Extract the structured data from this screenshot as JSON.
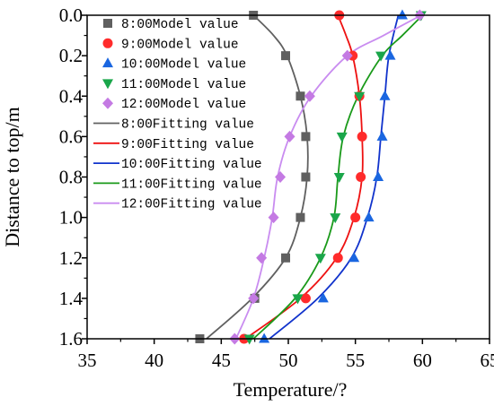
{
  "chart_data": {
    "type": "line",
    "title": "",
    "xlabel": "Temperature/?",
    "ylabel": "Distance to top/m",
    "xlim": [
      35,
      65
    ],
    "ylim": [
      0.0,
      1.6
    ],
    "y_inverted": true,
    "x_axis_position": "bottom",
    "xticks": [
      "35",
      "40",
      "45",
      "50",
      "55",
      "60",
      "65"
    ],
    "yticks": [
      "0.0",
      "0.2",
      "0.4",
      "0.6",
      "0.8",
      "1.0",
      "1.2",
      "1.4",
      "1.6"
    ],
    "grid": false,
    "legend_position": "top-left-inside",
    "model_series": [
      {
        "name": "8:00Model value",
        "marker": "square",
        "color": "#606060",
        "points": [
          [
            47.4,
            0.0
          ],
          [
            49.8,
            0.2
          ],
          [
            50.9,
            0.4
          ],
          [
            51.3,
            0.6
          ],
          [
            51.3,
            0.8
          ],
          [
            50.9,
            1.0
          ],
          [
            49.8,
            1.2
          ],
          [
            47.5,
            1.4
          ],
          [
            43.4,
            1.6
          ]
        ]
      },
      {
        "name": "9:00Model value",
        "marker": "circle",
        "color": "#ff2b2b",
        "points": [
          [
            53.8,
            0.0
          ],
          [
            54.8,
            0.2
          ],
          [
            55.3,
            0.4
          ],
          [
            55.5,
            0.6
          ],
          [
            55.4,
            0.8
          ],
          [
            55.0,
            1.0
          ],
          [
            53.7,
            1.2
          ],
          [
            51.3,
            1.4
          ],
          [
            46.7,
            1.6
          ]
        ]
      },
      {
        "name": "10:00Model value",
        "marker": "triangle-up",
        "color": "#1a66e0",
        "points": [
          [
            58.5,
            0.0
          ],
          [
            57.6,
            0.2
          ],
          [
            57.2,
            0.4
          ],
          [
            57.0,
            0.6
          ],
          [
            56.7,
            0.8
          ],
          [
            56.0,
            1.0
          ],
          [
            54.9,
            1.2
          ],
          [
            52.6,
            1.4
          ],
          [
            48.2,
            1.6
          ]
        ]
      },
      {
        "name": "11:00Model value",
        "marker": "triangle-down",
        "color": "#1aa64a",
        "points": [
          [
            59.9,
            0.0
          ],
          [
            56.9,
            0.2
          ],
          [
            55.3,
            0.4
          ],
          [
            54.0,
            0.6
          ],
          [
            53.8,
            0.8
          ],
          [
            53.5,
            1.0
          ],
          [
            52.4,
            1.2
          ],
          [
            50.7,
            1.4
          ],
          [
            47.1,
            1.6
          ]
        ]
      },
      {
        "name": "12:00Model value",
        "marker": "diamond",
        "color": "#c47ae3",
        "points": [
          [
            59.8,
            0.0
          ],
          [
            54.4,
            0.2
          ],
          [
            51.6,
            0.4
          ],
          [
            50.1,
            0.6
          ],
          [
            49.4,
            0.8
          ],
          [
            48.9,
            1.0
          ],
          [
            48.0,
            1.2
          ],
          [
            47.4,
            1.4
          ],
          [
            46.0,
            1.6
          ]
        ]
      }
    ],
    "fit_series": [
      {
        "name": "8:00Fitting value",
        "color": "#606060",
        "points": [
          [
            47.4,
            0.0
          ],
          [
            48.9,
            0.1
          ],
          [
            49.9,
            0.2
          ],
          [
            50.9,
            0.4
          ],
          [
            51.4,
            0.6
          ],
          [
            51.4,
            0.8
          ],
          [
            50.9,
            1.0
          ],
          [
            49.8,
            1.2
          ],
          [
            47.3,
            1.4
          ],
          [
            43.9,
            1.6
          ]
        ]
      },
      {
        "name": "9:00Fitting value",
        "color": "#ee1111",
        "points": [
          [
            53.7,
            0.0
          ],
          [
            54.3,
            0.1
          ],
          [
            54.8,
            0.2
          ],
          [
            55.3,
            0.4
          ],
          [
            55.5,
            0.6
          ],
          [
            55.5,
            0.8
          ],
          [
            54.9,
            1.0
          ],
          [
            53.6,
            1.2
          ],
          [
            50.9,
            1.4
          ],
          [
            46.8,
            1.6
          ]
        ]
      },
      {
        "name": "10:00Fitting value",
        "color": "#1133cc",
        "points": [
          [
            58.2,
            0.0
          ],
          [
            57.5,
            0.2
          ],
          [
            57.2,
            0.4
          ],
          [
            56.9,
            0.6
          ],
          [
            56.6,
            0.8
          ],
          [
            55.9,
            1.0
          ],
          [
            54.7,
            1.2
          ],
          [
            52.2,
            1.4
          ],
          [
            48.6,
            1.6
          ]
        ]
      },
      {
        "name": "11:00Fitting value",
        "color": "#1a9a1a",
        "points": [
          [
            60.0,
            0.0
          ],
          [
            58.5,
            0.1
          ],
          [
            57.0,
            0.2
          ],
          [
            55.2,
            0.4
          ],
          [
            54.1,
            0.6
          ],
          [
            53.7,
            0.8
          ],
          [
            53.4,
            1.0
          ],
          [
            52.4,
            1.2
          ],
          [
            50.5,
            1.4
          ],
          [
            47.4,
            1.6
          ]
        ]
      },
      {
        "name": "12:00Fitting value",
        "color": "#c98cf0",
        "points": [
          [
            59.9,
            0.0
          ],
          [
            57.1,
            0.1
          ],
          [
            54.4,
            0.2
          ],
          [
            51.7,
            0.4
          ],
          [
            50.1,
            0.6
          ],
          [
            49.2,
            0.8
          ],
          [
            48.8,
            1.0
          ],
          [
            48.2,
            1.2
          ],
          [
            47.4,
            1.4
          ],
          [
            46.1,
            1.6
          ]
        ]
      }
    ]
  }
}
